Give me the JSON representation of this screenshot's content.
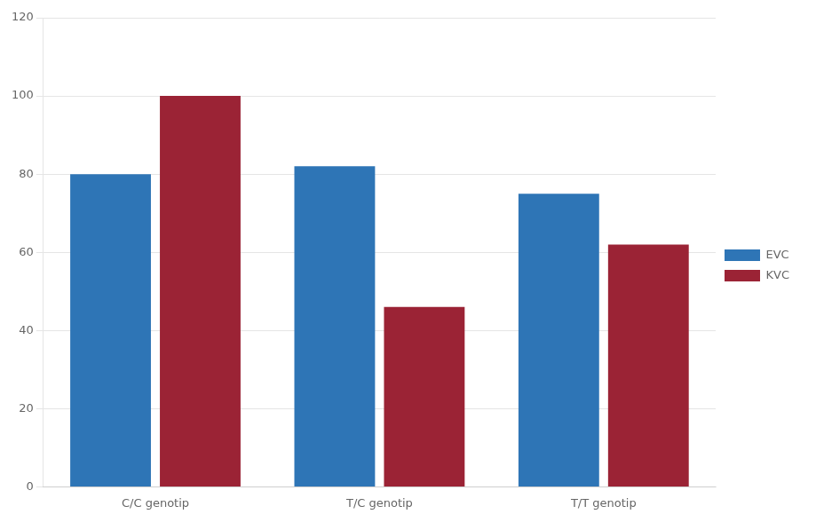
{
  "chart_data": {
    "type": "bar",
    "categories": [
      "C/C genotip",
      "T/C genotip",
      "T/T genotip"
    ],
    "series": [
      {
        "name": "EVC",
        "color": "#2E75B6",
        "values": [
          80,
          82,
          75
        ]
      },
      {
        "name": "KVC",
        "color": "#9B2335",
        "values": [
          100,
          46,
          62
        ]
      }
    ],
    "ylim": [
      0,
      120
    ],
    "yticks": [
      0,
      20,
      40,
      60,
      80,
      100,
      120
    ],
    "grid": true,
    "legend": "right"
  }
}
